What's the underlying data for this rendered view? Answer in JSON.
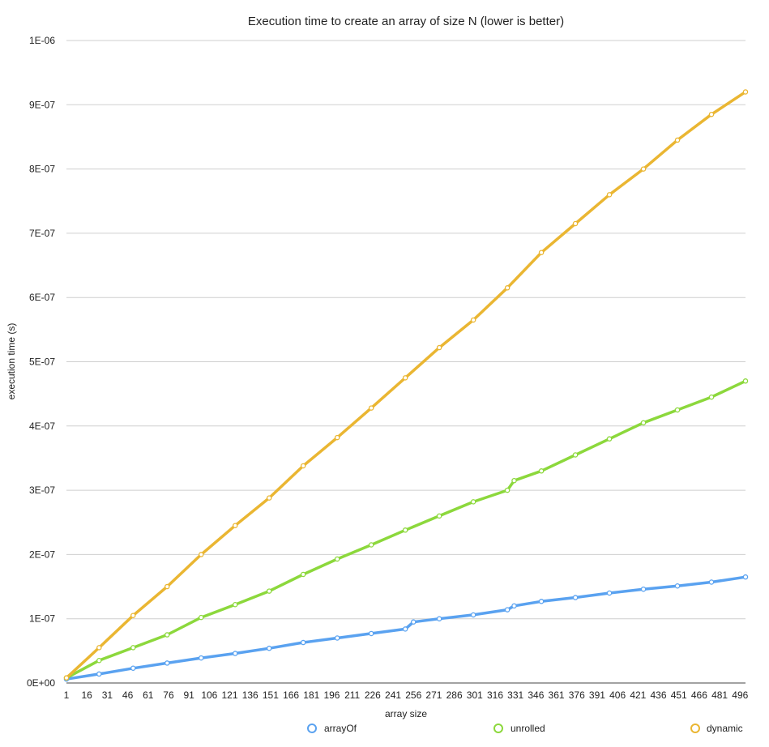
{
  "chart_data": {
    "type": "line",
    "title": "Execution time to create an array of size N (lower is better)",
    "xlabel": "array size",
    "ylabel": "execution time (s)",
    "x_tick_labels": [
      "1",
      "16",
      "31",
      "46",
      "61",
      "76",
      "91",
      "106",
      "121",
      "136",
      "151",
      "166",
      "181",
      "196",
      "211",
      "226",
      "241",
      "256",
      "271",
      "286",
      "301",
      "316",
      "331",
      "346",
      "361",
      "376",
      "391",
      "406",
      "421",
      "436",
      "451",
      "466",
      "481",
      "496"
    ],
    "y_tick_labels": [
      "0E+00",
      "1E-07",
      "2E-07",
      "3E-07",
      "4E-07",
      "5E-07",
      "6E-07",
      "7E-07",
      "8E-07",
      "9E-07",
      "1E-06"
    ],
    "xlim": [
      1,
      500
    ],
    "ylim": [
      0,
      1e-06
    ],
    "grid": true,
    "legend_position": "bottom",
    "series": [
      {
        "name": "arrayOf",
        "color": "#5aa2f0",
        "x": [
          1,
          25,
          50,
          75,
          100,
          125,
          150,
          175,
          200,
          225,
          250,
          256,
          275,
          300,
          325,
          330,
          350,
          375,
          400,
          425,
          450,
          475,
          500
        ],
        "y": [
          6e-09,
          1.4e-08,
          2.3e-08,
          3.1e-08,
          3.9e-08,
          4.6e-08,
          5.4e-08,
          6.3e-08,
          7e-08,
          7.7e-08,
          8.4e-08,
          9.5e-08,
          1e-07,
          1.06e-07,
          1.14e-07,
          1.2e-07,
          1.27e-07,
          1.33e-07,
          1.4e-07,
          1.46e-07,
          1.51e-07,
          1.57e-07,
          1.65e-07
        ]
      },
      {
        "name": "unrolled",
        "color": "#8cd83c",
        "x": [
          1,
          25,
          50,
          75,
          100,
          125,
          150,
          175,
          200,
          225,
          250,
          275,
          300,
          325,
          330,
          350,
          375,
          400,
          425,
          450,
          475,
          500
        ],
        "y": [
          8e-09,
          3.5e-08,
          5.5e-08,
          7.5e-08,
          1.02e-07,
          1.22e-07,
          1.43e-07,
          1.69e-07,
          1.93e-07,
          2.15e-07,
          2.38e-07,
          2.6e-07,
          2.82e-07,
          3e-07,
          3.15e-07,
          3.3e-07,
          3.55e-07,
          3.8e-07,
          4.05e-07,
          4.25e-07,
          4.45e-07,
          4.7e-07
        ]
      },
      {
        "name": "dynamic",
        "color": "#eab632",
        "x": [
          1,
          25,
          50,
          75,
          100,
          125,
          150,
          175,
          200,
          225,
          250,
          275,
          300,
          325,
          350,
          375,
          400,
          425,
          450,
          475,
          500
        ],
        "y": [
          8e-09,
          5.5e-08,
          1.05e-07,
          1.5e-07,
          2e-07,
          2.45e-07,
          2.88e-07,
          3.38e-07,
          3.82e-07,
          4.28e-07,
          4.75e-07,
          5.22e-07,
          5.65e-07,
          6.15e-07,
          6.7e-07,
          7.15e-07,
          7.6e-07,
          8e-07,
          8.45e-07,
          8.85e-07,
          9.2e-07
        ]
      }
    ]
  }
}
